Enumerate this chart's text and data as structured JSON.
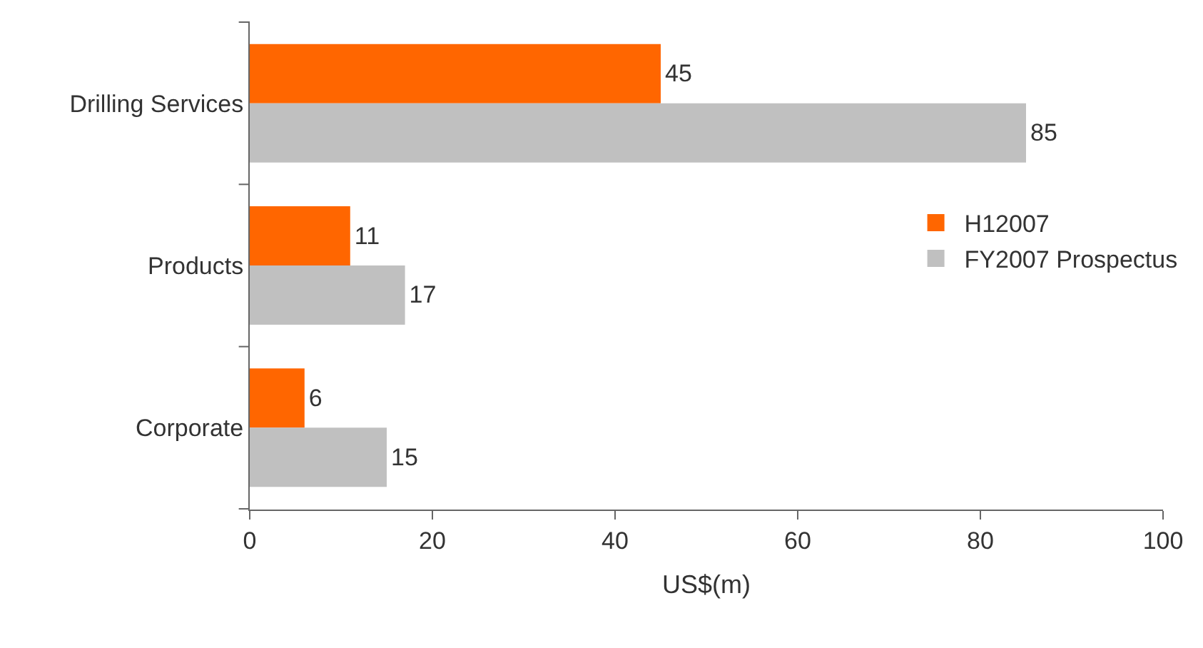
{
  "chart_data": {
    "type": "bar",
    "orientation": "horizontal",
    "categories": [
      "Drilling Services",
      "Products",
      "Corporate"
    ],
    "series": [
      {
        "name": "H12007",
        "color": "#ff6600",
        "values": [
          45,
          11,
          6
        ]
      },
      {
        "name": "FY2007 Prospectus",
        "color": "#c0c0c0",
        "values": [
          85,
          17,
          15
        ]
      }
    ],
    "xlim": [
      0,
      100
    ],
    "xticks": [
      0,
      20,
      40,
      60,
      80,
      100
    ],
    "xlabel": "US$(m)",
    "legend": "right",
    "data_labels": true
  }
}
